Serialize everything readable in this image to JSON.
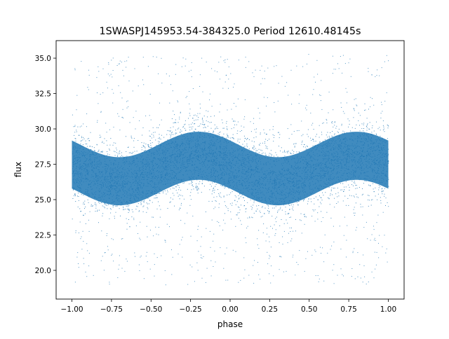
{
  "chart_data": {
    "type": "scatter",
    "title": "1SWASPJ145953.54-384325.0 Period 12610.48145s",
    "xlabel": "phase",
    "ylabel": "flux",
    "xlim": [
      -1.1,
      1.1
    ],
    "ylim": [
      17.97,
      36.24
    ],
    "xticks": [
      -1.0,
      -0.75,
      -0.5,
      -0.25,
      0.0,
      0.25,
      0.5,
      0.75,
      1.0
    ],
    "xtick_labels": [
      "−1.00",
      "−0.75",
      "−0.50",
      "−0.25",
      "0.00",
      "0.25",
      "0.50",
      "0.75",
      "1.00"
    ],
    "yticks": [
      20.0,
      22.5,
      25.0,
      27.5,
      30.0,
      32.5,
      35.0
    ],
    "ytick_labels": [
      "20.0",
      "22.5",
      "25.0",
      "27.5",
      "30.0",
      "32.5",
      "35.0"
    ],
    "grid": false,
    "series": [
      {
        "name": "flux",
        "color": "#1f77b4",
        "x_range": [
          -1.0,
          1.0
        ],
        "trend": {
          "mean": 27.2,
          "amplitude": 0.9,
          "max_phases": [
            -0.2,
            0.8
          ],
          "min_phases": [
            -0.7,
            0.3
          ]
        },
        "scatter_sigma": 1.3,
        "outlier_range": [
          19.0,
          35.3
        ]
      }
    ]
  }
}
